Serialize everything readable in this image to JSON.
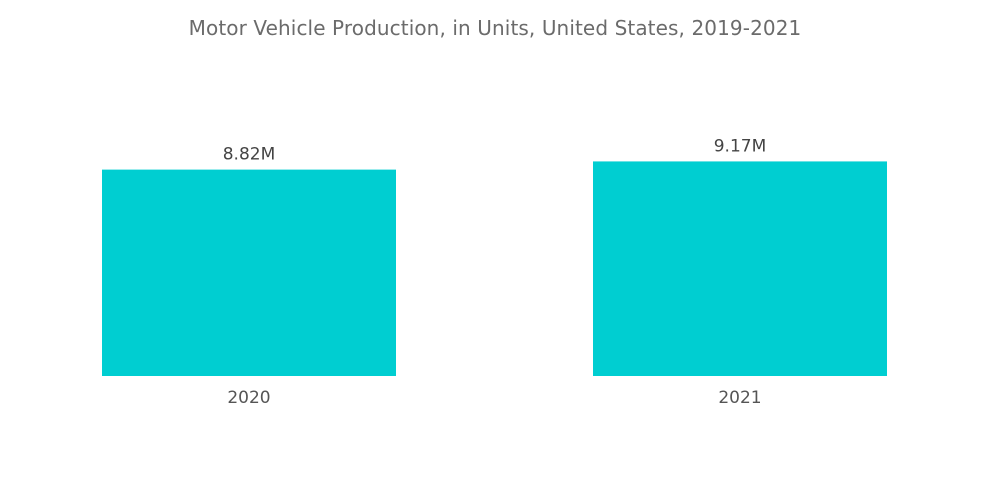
{
  "chart_data": {
    "type": "bar",
    "title": "Motor Vehicle Production, in Units, United States, 2019-2021",
    "categories": [
      "2020",
      "2021"
    ],
    "values": [
      8.82,
      9.17
    ],
    "value_labels": [
      "8.82M",
      "9.17M"
    ],
    "unit": "M",
    "xlabel": "",
    "ylabel": "",
    "ylim": [
      0,
      10
    ],
    "grid": false,
    "legend": "none",
    "bar_color": "#00CED1"
  }
}
